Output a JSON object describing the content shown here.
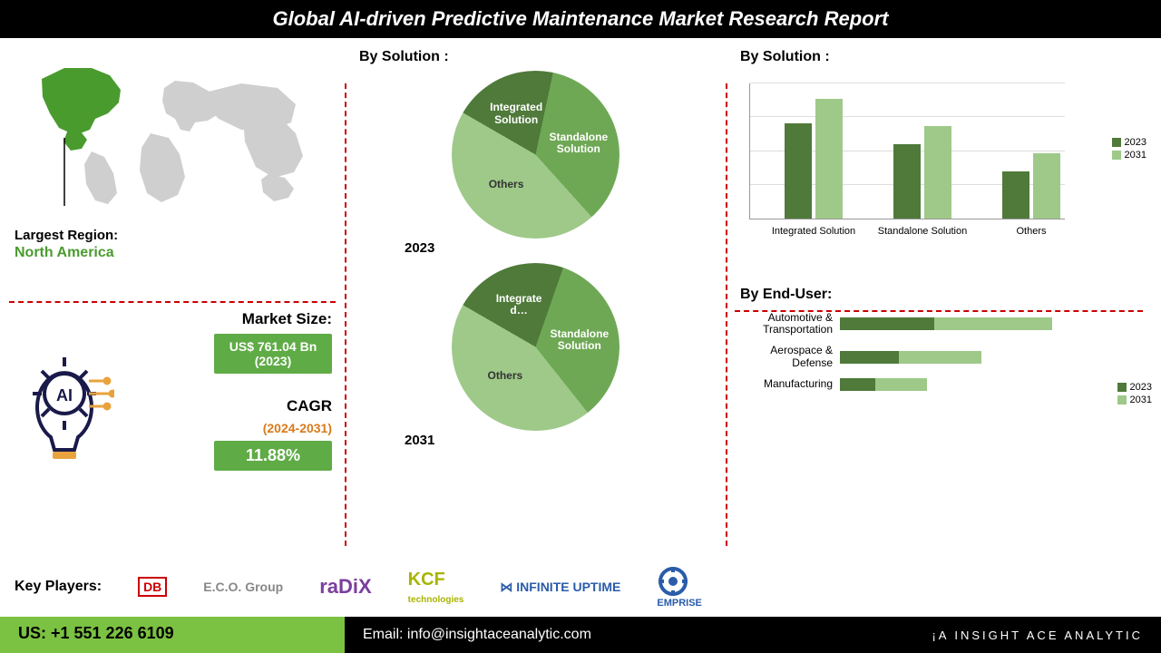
{
  "header_title": "Global AI-driven Predictive Maintenance Market  Research Report",
  "largest_region_label": "Largest Region:",
  "largest_region_value": "North America",
  "map": {
    "highlight_color": "#4a9b2e",
    "base_color": "#cfcfcf"
  },
  "market_size": {
    "label": "Market Size:",
    "value": "US$ 761.04 Bn (2023)",
    "badge_bg": "#5fab46"
  },
  "cagr": {
    "label": "CAGR",
    "years": "(2024-2031)",
    "value": "11.88%",
    "badge_bg": "#5fab46",
    "years_color": "#d97a1a"
  },
  "pie_section_title": "By Solution :",
  "pie_2023": {
    "year": "2023",
    "slices": [
      {
        "name": "Integrated Solution",
        "value": 20,
        "color": "#4f7a3a"
      },
      {
        "name": "Standalone Solution",
        "value": 35,
        "color": "#6fa855"
      },
      {
        "name": "Others",
        "value": 45,
        "color": "#9ec989"
      }
    ]
  },
  "pie_2031": {
    "year": "2031",
    "slices": [
      {
        "name": "Integrate d…",
        "value": 22,
        "color": "#4f7a3a"
      },
      {
        "name": "Standalone Solution",
        "value": 34,
        "color": "#6fa855"
      },
      {
        "name": "Others",
        "value": 44,
        "color": "#9ec989"
      }
    ]
  },
  "bar_chart": {
    "title": "By  Solution :",
    "categories": [
      "Integrated Solution",
      "Standalone Solution",
      "Others"
    ],
    "series": [
      {
        "name": "2023",
        "color": "#4f7a3a",
        "values": [
          70,
          55,
          35
        ]
      },
      {
        "name": "2031",
        "color": "#9ec989",
        "values": [
          88,
          68,
          48
        ]
      }
    ],
    "ylim": [
      0,
      100
    ],
    "grid_steps": [
      25,
      50,
      75,
      100
    ]
  },
  "hbar_chart": {
    "title": "By End-User:",
    "categories": [
      "Automotive & Transportation",
      "Aerospace & Defense",
      "Manufacturing"
    ],
    "series": [
      {
        "name": "2023",
        "color": "#4f7a3a",
        "values": [
          40,
          25,
          15
        ]
      },
      {
        "name": "2031",
        "color": "#9ec989",
        "values": [
          50,
          35,
          22
        ]
      }
    ],
    "xlim": [
      0,
      100
    ]
  },
  "key_players": {
    "label": "Key Players:",
    "logos": [
      "DB",
      "E.C.O. Group",
      "raDiX",
      "KCF technologies",
      "INFINITE UPTIME",
      "EMPRISE"
    ]
  },
  "footer": {
    "phone": "US: +1 551 226 6109",
    "email": "Email: info@insightaceanalytic.com",
    "brand": "INSIGHT ACE ANALYTIC"
  }
}
